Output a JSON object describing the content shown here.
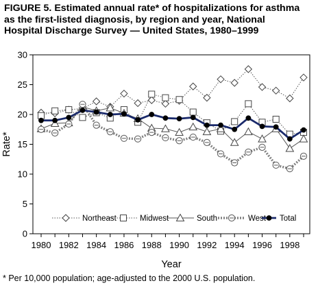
{
  "figure": {
    "title_lines": [
      "FIGURE 5. Estimated annual rate* of hospitalizations for asthma",
      "as the first-listed diagnosis, by region and year, National",
      "Hospital Discharge Survey — United States, 1980–1999"
    ],
    "footnote": "* Per 10,000 population; age-adjusted to the 2000 U.S. population."
  },
  "chart_data": {
    "type": "line",
    "xlabel": "Year",
    "ylabel": "Rate*",
    "xlim": [
      1980,
      1999
    ],
    "ylim": [
      0,
      30
    ],
    "x_ticks": [
      "1980",
      "1982",
      "1984",
      "1986",
      "1988",
      "1990",
      "1992",
      "1994",
      "1996",
      "1998"
    ],
    "y_ticks": [
      "0",
      "5",
      "10",
      "15",
      "20",
      "25",
      "30"
    ],
    "grid": false,
    "legend_position": "bottom",
    "x": [
      1980,
      1981,
      1982,
      1983,
      1984,
      1985,
      1986,
      1987,
      1988,
      1989,
      1990,
      1991,
      1992,
      1993,
      1994,
      1995,
      1996,
      1997,
      1998,
      1999
    ],
    "series": [
      {
        "name": "Northeast",
        "marker": "diamond",
        "line": "dotted",
        "color": "#555555",
        "values": [
          20.3,
          20.2,
          20.8,
          21.0,
          22.2,
          21.3,
          23.5,
          21.9,
          22.4,
          21.8,
          22.3,
          24.7,
          22.8,
          25.9,
          25.3,
          27.6,
          24.6,
          24.0,
          22.7,
          26.2
        ]
      },
      {
        "name": "Midwest",
        "marker": "square",
        "line": "dotted",
        "color": "#555555",
        "values": [
          19.8,
          20.6,
          20.8,
          19.5,
          20.3,
          19.4,
          20.8,
          18.7,
          23.4,
          22.8,
          22.5,
          20.4,
          18.6,
          17.2,
          18.8,
          21.8,
          18.7,
          19.2,
          16.7,
          17.0
        ]
      },
      {
        "name": "South",
        "marker": "triangle",
        "line": "solid",
        "color": "#555555",
        "values": [
          17.6,
          18.5,
          18.6,
          21.3,
          20.6,
          21.1,
          20.2,
          19.3,
          17.7,
          17.6,
          17.0,
          17.9,
          17.1,
          17.6,
          15.3,
          17.1,
          15.9,
          17.6,
          14.3,
          15.9
        ]
      },
      {
        "name": "West",
        "marker": "circle",
        "line": "thick-dotted",
        "color": "#808080",
        "values": [
          17.5,
          16.9,
          18.4,
          21.7,
          18.2,
          17.1,
          16.0,
          15.9,
          17.0,
          16.1,
          15.6,
          16.2,
          15.3,
          13.4,
          11.9,
          13.7,
          14.5,
          11.5,
          10.9,
          13.0
        ]
      },
      {
        "name": "Total",
        "marker": "filled-circle",
        "line": "solid-bold",
        "color": "#1a2a6b",
        "values": [
          19.0,
          19.0,
          19.5,
          20.7,
          20.4,
          20.0,
          20.1,
          19.1,
          20.0,
          19.4,
          19.3,
          19.5,
          18.2,
          18.2,
          17.5,
          19.4,
          18.0,
          17.9,
          15.9,
          17.4
        ]
      }
    ]
  }
}
